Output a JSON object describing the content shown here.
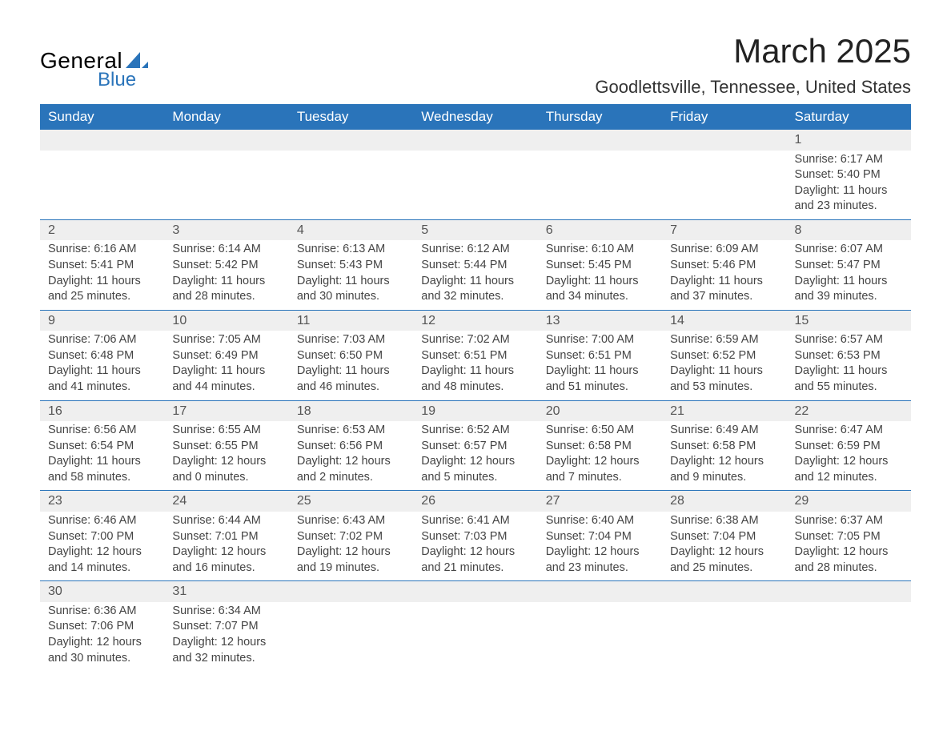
{
  "logo": {
    "line1": "General",
    "line2": "Blue",
    "shape_color": "#2a74ba"
  },
  "header": {
    "month_title": "March 2025",
    "location": "Goodlettsville, Tennessee, United States"
  },
  "colors": {
    "header_bg": "#2a74ba",
    "header_fg": "#ffffff",
    "daynum_bg": "#efefef",
    "border": "#2a74ba",
    "text": "#444444"
  },
  "day_headers": [
    "Sunday",
    "Monday",
    "Tuesday",
    "Wednesday",
    "Thursday",
    "Friday",
    "Saturday"
  ],
  "weeks": [
    [
      null,
      null,
      null,
      null,
      null,
      null,
      {
        "n": "1",
        "sr": "Sunrise: 6:17 AM",
        "ss": "Sunset: 5:40 PM",
        "d1": "Daylight: 11 hours",
        "d2": "and 23 minutes."
      }
    ],
    [
      {
        "n": "2",
        "sr": "Sunrise: 6:16 AM",
        "ss": "Sunset: 5:41 PM",
        "d1": "Daylight: 11 hours",
        "d2": "and 25 minutes."
      },
      {
        "n": "3",
        "sr": "Sunrise: 6:14 AM",
        "ss": "Sunset: 5:42 PM",
        "d1": "Daylight: 11 hours",
        "d2": "and 28 minutes."
      },
      {
        "n": "4",
        "sr": "Sunrise: 6:13 AM",
        "ss": "Sunset: 5:43 PM",
        "d1": "Daylight: 11 hours",
        "d2": "and 30 minutes."
      },
      {
        "n": "5",
        "sr": "Sunrise: 6:12 AM",
        "ss": "Sunset: 5:44 PM",
        "d1": "Daylight: 11 hours",
        "d2": "and 32 minutes."
      },
      {
        "n": "6",
        "sr": "Sunrise: 6:10 AM",
        "ss": "Sunset: 5:45 PM",
        "d1": "Daylight: 11 hours",
        "d2": "and 34 minutes."
      },
      {
        "n": "7",
        "sr": "Sunrise: 6:09 AM",
        "ss": "Sunset: 5:46 PM",
        "d1": "Daylight: 11 hours",
        "d2": "and 37 minutes."
      },
      {
        "n": "8",
        "sr": "Sunrise: 6:07 AM",
        "ss": "Sunset: 5:47 PM",
        "d1": "Daylight: 11 hours",
        "d2": "and 39 minutes."
      }
    ],
    [
      {
        "n": "9",
        "sr": "Sunrise: 7:06 AM",
        "ss": "Sunset: 6:48 PM",
        "d1": "Daylight: 11 hours",
        "d2": "and 41 minutes."
      },
      {
        "n": "10",
        "sr": "Sunrise: 7:05 AM",
        "ss": "Sunset: 6:49 PM",
        "d1": "Daylight: 11 hours",
        "d2": "and 44 minutes."
      },
      {
        "n": "11",
        "sr": "Sunrise: 7:03 AM",
        "ss": "Sunset: 6:50 PM",
        "d1": "Daylight: 11 hours",
        "d2": "and 46 minutes."
      },
      {
        "n": "12",
        "sr": "Sunrise: 7:02 AM",
        "ss": "Sunset: 6:51 PM",
        "d1": "Daylight: 11 hours",
        "d2": "and 48 minutes."
      },
      {
        "n": "13",
        "sr": "Sunrise: 7:00 AM",
        "ss": "Sunset: 6:51 PM",
        "d1": "Daylight: 11 hours",
        "d2": "and 51 minutes."
      },
      {
        "n": "14",
        "sr": "Sunrise: 6:59 AM",
        "ss": "Sunset: 6:52 PM",
        "d1": "Daylight: 11 hours",
        "d2": "and 53 minutes."
      },
      {
        "n": "15",
        "sr": "Sunrise: 6:57 AM",
        "ss": "Sunset: 6:53 PM",
        "d1": "Daylight: 11 hours",
        "d2": "and 55 minutes."
      }
    ],
    [
      {
        "n": "16",
        "sr": "Sunrise: 6:56 AM",
        "ss": "Sunset: 6:54 PM",
        "d1": "Daylight: 11 hours",
        "d2": "and 58 minutes."
      },
      {
        "n": "17",
        "sr": "Sunrise: 6:55 AM",
        "ss": "Sunset: 6:55 PM",
        "d1": "Daylight: 12 hours",
        "d2": "and 0 minutes."
      },
      {
        "n": "18",
        "sr": "Sunrise: 6:53 AM",
        "ss": "Sunset: 6:56 PM",
        "d1": "Daylight: 12 hours",
        "d2": "and 2 minutes."
      },
      {
        "n": "19",
        "sr": "Sunrise: 6:52 AM",
        "ss": "Sunset: 6:57 PM",
        "d1": "Daylight: 12 hours",
        "d2": "and 5 minutes."
      },
      {
        "n": "20",
        "sr": "Sunrise: 6:50 AM",
        "ss": "Sunset: 6:58 PM",
        "d1": "Daylight: 12 hours",
        "d2": "and 7 minutes."
      },
      {
        "n": "21",
        "sr": "Sunrise: 6:49 AM",
        "ss": "Sunset: 6:58 PM",
        "d1": "Daylight: 12 hours",
        "d2": "and 9 minutes."
      },
      {
        "n": "22",
        "sr": "Sunrise: 6:47 AM",
        "ss": "Sunset: 6:59 PM",
        "d1": "Daylight: 12 hours",
        "d2": "and 12 minutes."
      }
    ],
    [
      {
        "n": "23",
        "sr": "Sunrise: 6:46 AM",
        "ss": "Sunset: 7:00 PM",
        "d1": "Daylight: 12 hours",
        "d2": "and 14 minutes."
      },
      {
        "n": "24",
        "sr": "Sunrise: 6:44 AM",
        "ss": "Sunset: 7:01 PM",
        "d1": "Daylight: 12 hours",
        "d2": "and 16 minutes."
      },
      {
        "n": "25",
        "sr": "Sunrise: 6:43 AM",
        "ss": "Sunset: 7:02 PM",
        "d1": "Daylight: 12 hours",
        "d2": "and 19 minutes."
      },
      {
        "n": "26",
        "sr": "Sunrise: 6:41 AM",
        "ss": "Sunset: 7:03 PM",
        "d1": "Daylight: 12 hours",
        "d2": "and 21 minutes."
      },
      {
        "n": "27",
        "sr": "Sunrise: 6:40 AM",
        "ss": "Sunset: 7:04 PM",
        "d1": "Daylight: 12 hours",
        "d2": "and 23 minutes."
      },
      {
        "n": "28",
        "sr": "Sunrise: 6:38 AM",
        "ss": "Sunset: 7:04 PM",
        "d1": "Daylight: 12 hours",
        "d2": "and 25 minutes."
      },
      {
        "n": "29",
        "sr": "Sunrise: 6:37 AM",
        "ss": "Sunset: 7:05 PM",
        "d1": "Daylight: 12 hours",
        "d2": "and 28 minutes."
      }
    ],
    [
      {
        "n": "30",
        "sr": "Sunrise: 6:36 AM",
        "ss": "Sunset: 7:06 PM",
        "d1": "Daylight: 12 hours",
        "d2": "and 30 minutes."
      },
      {
        "n": "31",
        "sr": "Sunrise: 6:34 AM",
        "ss": "Sunset: 7:07 PM",
        "d1": "Daylight: 12 hours",
        "d2": "and 32 minutes."
      },
      null,
      null,
      null,
      null,
      null
    ]
  ]
}
